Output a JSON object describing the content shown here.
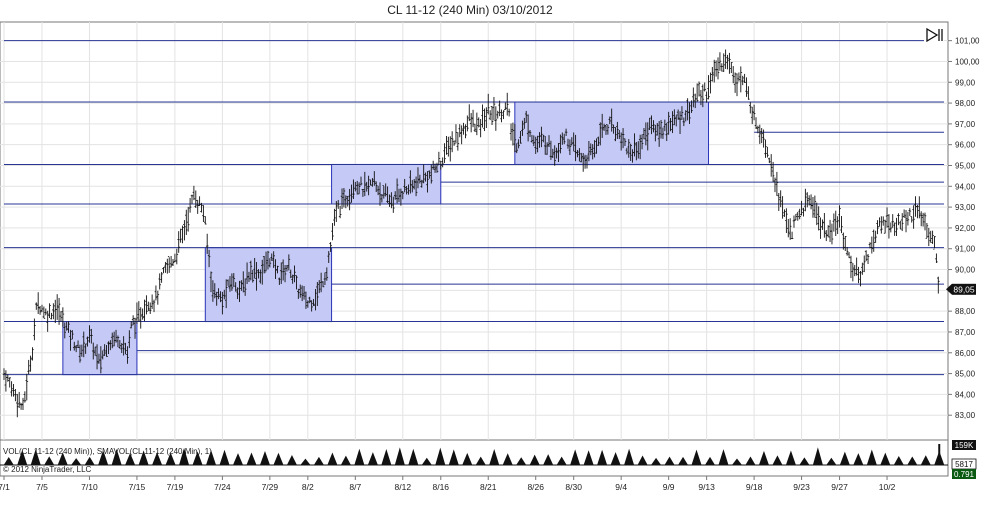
{
  "title": "CL 11-12 (240 Min)  03/10/2012",
  "copyright": "© 2012 NinjaTrader, LLC",
  "volume_label": "VOL(CL 11-12 (240 Min)), SMAVOL(CL 11-12 (240 Min), 1)",
  "volume_max_label": "159K",
  "volume_current_label": "5817",
  "volume_sma_label": "0.791",
  "price_label": "89,05",
  "scroll_icon": "scroll-to-end-icon",
  "colors": {
    "line": "#283593",
    "zone_fill": "#c5c9f5",
    "zone_stroke": "#2b33b8",
    "bar": "#111111"
  },
  "chart_data": {
    "type": "bar",
    "title": "CL 11-12 (240 Min)  03/10/2012",
    "y_ticks": [
      "83,00",
      "84,00",
      "85,00",
      "86,00",
      "87,00",
      "88,00",
      "89,00",
      "90,00",
      "91,00",
      "92,00",
      "93,00",
      "94,00",
      "95,00",
      "96,00",
      "97,00",
      "98,00",
      "99,00",
      "100,00",
      "101,00"
    ],
    "ylim": [
      82.0,
      101.8
    ],
    "x_ticks": [
      {
        "label": "7/1",
        "day": 0
      },
      {
        "label": "7/5",
        "day": 4
      },
      {
        "label": "7/10",
        "day": 9
      },
      {
        "label": "7/15",
        "day": 14
      },
      {
        "label": "7/19",
        "day": 18
      },
      {
        "label": "7/24",
        "day": 23
      },
      {
        "label": "7/29",
        "day": 28
      },
      {
        "label": "8/2",
        "day": 32
      },
      {
        "label": "8/7",
        "day": 37
      },
      {
        "label": "8/12",
        "day": 42
      },
      {
        "label": "8/16",
        "day": 46
      },
      {
        "label": "8/21",
        "day": 51
      },
      {
        "label": "8/26",
        "day": 56
      },
      {
        "label": "8/30",
        "day": 60
      },
      {
        "label": "9/4",
        "day": 65
      },
      {
        "label": "9/9",
        "day": 70
      },
      {
        "label": "9/13",
        "day": 74
      },
      {
        "label": "9/18",
        "day": 79
      },
      {
        "label": "9/23",
        "day": 84
      },
      {
        "label": "9/27",
        "day": 88
      },
      {
        "label": "10/2",
        "day": 93
      }
    ],
    "xlim": [
      0,
      99
    ],
    "grid": true,
    "horizontal_lines": [
      {
        "price": 101.0,
        "from": 0,
        "to": 99
      },
      {
        "price": 98.05,
        "from": 0,
        "to": 99
      },
      {
        "price": 96.6,
        "from": 79,
        "to": 99
      },
      {
        "price": 95.05,
        "from": 0,
        "to": 99
      },
      {
        "price": 94.2,
        "from": 46,
        "to": 99
      },
      {
        "price": 93.15,
        "from": 0,
        "to": 99
      },
      {
        "price": 91.05,
        "from": 0,
        "to": 99
      },
      {
        "price": 89.3,
        "from": 34.5,
        "to": 99
      },
      {
        "price": 87.5,
        "from": 0,
        "to": 99
      },
      {
        "price": 86.1,
        "from": 14,
        "to": 99
      },
      {
        "price": 84.95,
        "from": 0,
        "to": 99
      }
    ],
    "zones": [
      {
        "from": 6.2,
        "to": 14,
        "low": 84.95,
        "high": 87.5
      },
      {
        "from": 21.2,
        "to": 34.5,
        "low": 87.5,
        "high": 91.05
      },
      {
        "from": 34.5,
        "to": 46,
        "low": 93.15,
        "high": 95.05
      },
      {
        "from": 53.8,
        "to": 74.2,
        "low": 95.05,
        "high": 98.05
      }
    ],
    "price_path": [
      [
        0,
        85.0
      ],
      [
        1,
        84.2
      ],
      [
        2,
        83.3
      ],
      [
        2.5,
        84.8
      ],
      [
        3,
        86.2
      ],
      [
        3.5,
        88.5
      ],
      [
        4.5,
        87.8
      ],
      [
        5.5,
        88.2
      ],
      [
        6.5,
        87.3
      ],
      [
        8,
        86.0
      ],
      [
        9,
        86.8
      ],
      [
        10,
        85.5
      ],
      [
        11,
        86.5
      ],
      [
        12,
        86.8
      ],
      [
        13,
        86.0
      ],
      [
        13.5,
        87.5
      ],
      [
        14,
        87.5
      ],
      [
        15,
        88.4
      ],
      [
        16,
        88.6
      ],
      [
        17,
        90.0
      ],
      [
        18,
        90.6
      ],
      [
        19,
        92.0
      ],
      [
        20,
        93.6
      ],
      [
        21,
        92.8
      ],
      [
        22,
        89.0
      ],
      [
        23,
        88.5
      ],
      [
        24,
        89.5
      ],
      [
        25,
        89.0
      ],
      [
        26,
        90.0
      ],
      [
        27,
        89.8
      ],
      [
        28,
        90.6
      ],
      [
        29,
        89.7
      ],
      [
        30,
        90.2
      ],
      [
        31,
        89.0
      ],
      [
        32,
        88.4
      ],
      [
        33,
        88.8
      ],
      [
        34,
        90.0
      ],
      [
        35,
        92.8
      ],
      [
        36,
        93.4
      ],
      [
        37,
        94.2
      ],
      [
        38,
        93.8
      ],
      [
        39,
        94.2
      ],
      [
        40,
        93.5
      ],
      [
        41,
        93.3
      ],
      [
        42,
        93.8
      ],
      [
        43,
        94.0
      ],
      [
        44,
        94.3
      ],
      [
        45,
        94.6
      ],
      [
        46,
        95.2
      ],
      [
        47,
        96.0
      ],
      [
        48,
        96.5
      ],
      [
        49,
        97.2
      ],
      [
        50,
        96.8
      ],
      [
        51,
        97.6
      ],
      [
        52,
        97.5
      ],
      [
        53,
        97.8
      ],
      [
        53.5,
        96.5
      ],
      [
        54,
        96.0
      ],
      [
        55,
        97.2
      ],
      [
        56,
        96.0
      ],
      [
        57,
        96.2
      ],
      [
        58,
        95.6
      ],
      [
        59,
        96.5
      ],
      [
        60,
        95.8
      ],
      [
        61,
        95.2
      ],
      [
        62,
        95.6
      ],
      [
        63,
        96.8
      ],
      [
        64,
        97.0
      ],
      [
        65,
        96.4
      ],
      [
        66,
        95.6
      ],
      [
        67,
        96.0
      ],
      [
        68,
        96.9
      ],
      [
        69,
        96.6
      ],
      [
        70,
        97.0
      ],
      [
        71,
        97.2
      ],
      [
        72,
        97.6
      ],
      [
        73,
        98.4
      ],
      [
        74,
        98.6
      ],
      [
        75,
        99.6
      ],
      [
        76,
        100.2
      ],
      [
        77,
        99.3
      ],
      [
        78,
        99.0
      ],
      [
        79,
        97.3
      ],
      [
        80,
        96.4
      ],
      [
        81,
        94.8
      ],
      [
        82,
        92.8
      ],
      [
        83,
        91.8
      ],
      [
        84,
        92.9
      ],
      [
        85,
        93.4
      ],
      [
        86,
        92.2
      ],
      [
        87,
        91.6
      ],
      [
        88,
        92.5
      ],
      [
        89,
        90.5
      ],
      [
        90,
        89.6
      ],
      [
        91,
        90.8
      ],
      [
        92,
        92.0
      ],
      [
        93,
        92.3
      ],
      [
        94,
        92.1
      ],
      [
        95,
        92.5
      ],
      [
        96,
        92.8
      ],
      [
        97,
        92.3
      ],
      [
        98,
        91.2
      ],
      [
        98.5,
        89.1
      ]
    ],
    "last_price": 89.05,
    "volume": {
      "label": "VOL(CL 11-12 (240 Min)), SMAVOL(CL 11-12 (240 Min), 1)",
      "max": "159K",
      "current": "5817",
      "sma": "0.791",
      "spike_count": 70
    }
  }
}
